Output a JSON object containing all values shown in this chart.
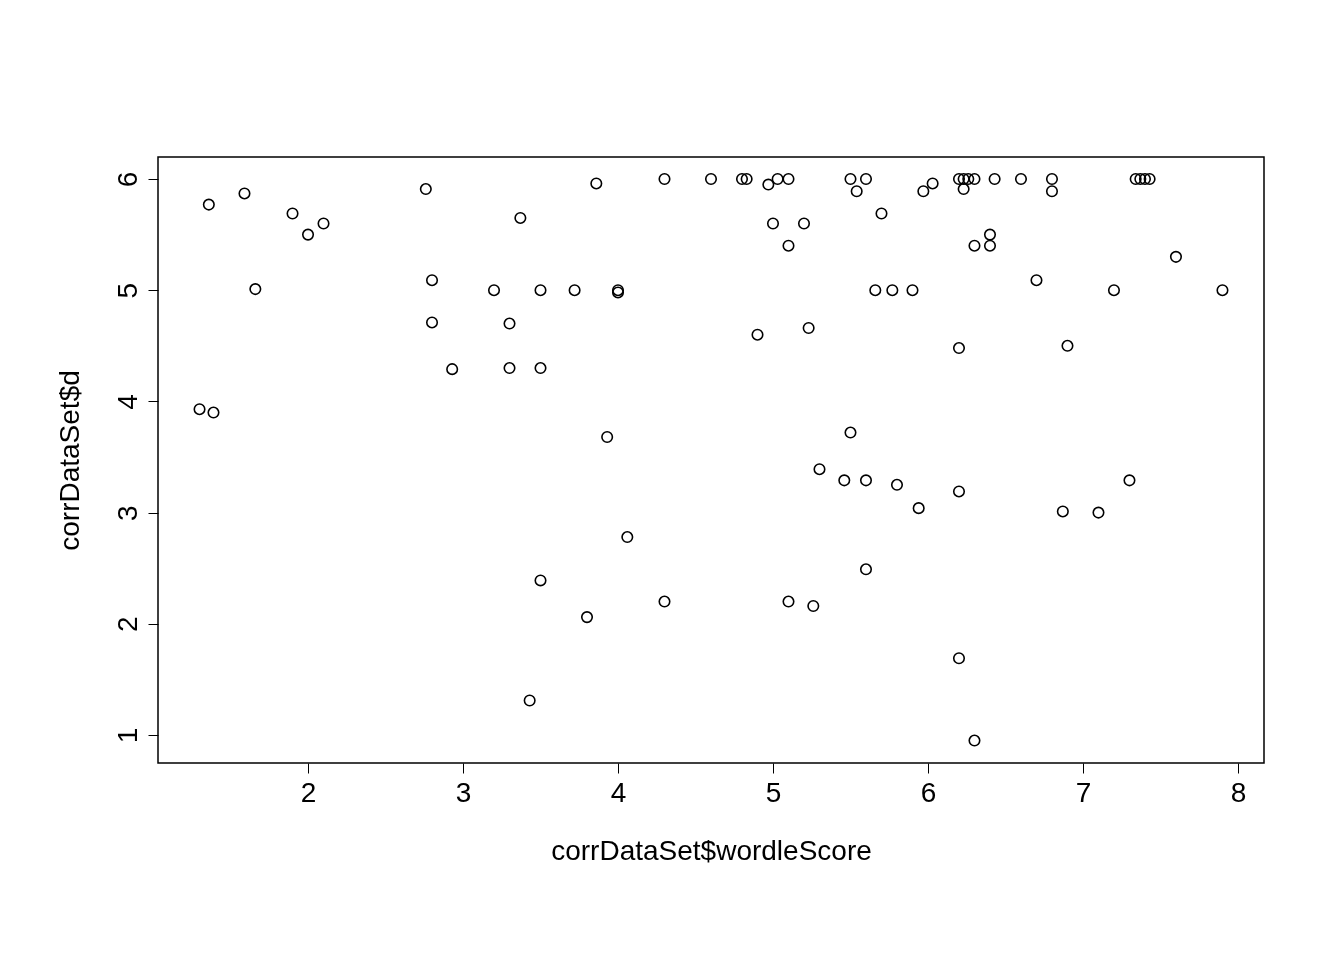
{
  "chart_data": {
    "type": "scatter",
    "xlabel": "corrDataSet$wordleScore",
    "ylabel": "corrDataSet$d",
    "xlim": [
      1.032,
      8.168
    ],
    "ylim": [
      0.748,
      6.198
    ],
    "xticks": [
      2,
      3,
      4,
      5,
      6,
      7,
      8
    ],
    "yticks": [
      1,
      2,
      3,
      4,
      5,
      6
    ],
    "grid": false,
    "marker": "circle",
    "series": [
      {
        "color": "#000000",
        "x": [
          1.3,
          1.39,
          1.36,
          1.59,
          1.66,
          1.9,
          2.0,
          2.1,
          2.76,
          2.8,
          2.8,
          2.93,
          3.2,
          3.3,
          3.3,
          3.37,
          3.5,
          3.5,
          3.5,
          3.43,
          3.72,
          3.8,
          3.86,
          3.93,
          4.0,
          4.0,
          4.06,
          4.3,
          4.3,
          4.6,
          4.8,
          4.83,
          4.9,
          4.97,
          5.0,
          5.03,
          5.1,
          5.1,
          5.1,
          5.2,
          5.23,
          5.26,
          5.3,
          5.46,
          5.5,
          5.5,
          5.54,
          5.6,
          5.6,
          5.6,
          5.66,
          5.7,
          5.77,
          5.8,
          5.9,
          5.94,
          5.97,
          6.03,
          6.2,
          6.2,
          6.2,
          6.2,
          6.23,
          6.23,
          6.26,
          6.3,
          6.3,
          6.3,
          6.4,
          6.4,
          6.43,
          6.6,
          6.7,
          6.8,
          6.8,
          6.87,
          6.9,
          7.1,
          7.2,
          7.3,
          7.34,
          7.37,
          7.4,
          7.43,
          7.6,
          7.9
        ],
        "values": [
          3.93,
          3.9,
          5.77,
          5.87,
          5.01,
          5.69,
          5.5,
          5.6,
          5.91,
          5.09,
          4.71,
          4.29,
          5.0,
          4.7,
          4.3,
          5.65,
          5.0,
          4.3,
          2.39,
          1.31,
          5.0,
          2.06,
          5.96,
          3.68,
          5.0,
          4.98,
          2.78,
          6.0,
          2.2,
          6.0,
          6.0,
          6.0,
          4.6,
          5.95,
          5.6,
          6.0,
          6.0,
          5.4,
          2.2,
          5.6,
          4.66,
          2.16,
          3.39,
          3.29,
          6.0,
          3.72,
          5.89,
          6.0,
          3.29,
          2.49,
          5.0,
          5.69,
          5.0,
          3.25,
          5.0,
          3.04,
          5.89,
          5.96,
          6.0,
          4.48,
          3.19,
          1.69,
          5.91,
          6.0,
          6.0,
          6.0,
          5.4,
          0.95,
          5.5,
          5.4,
          6.0,
          6.0,
          5.09,
          6.0,
          5.89,
          3.01,
          4.5,
          3.0,
          5.0,
          3.29,
          6.0,
          6.0,
          6.0,
          6.0,
          5.3,
          5.0
        ]
      }
    ]
  }
}
